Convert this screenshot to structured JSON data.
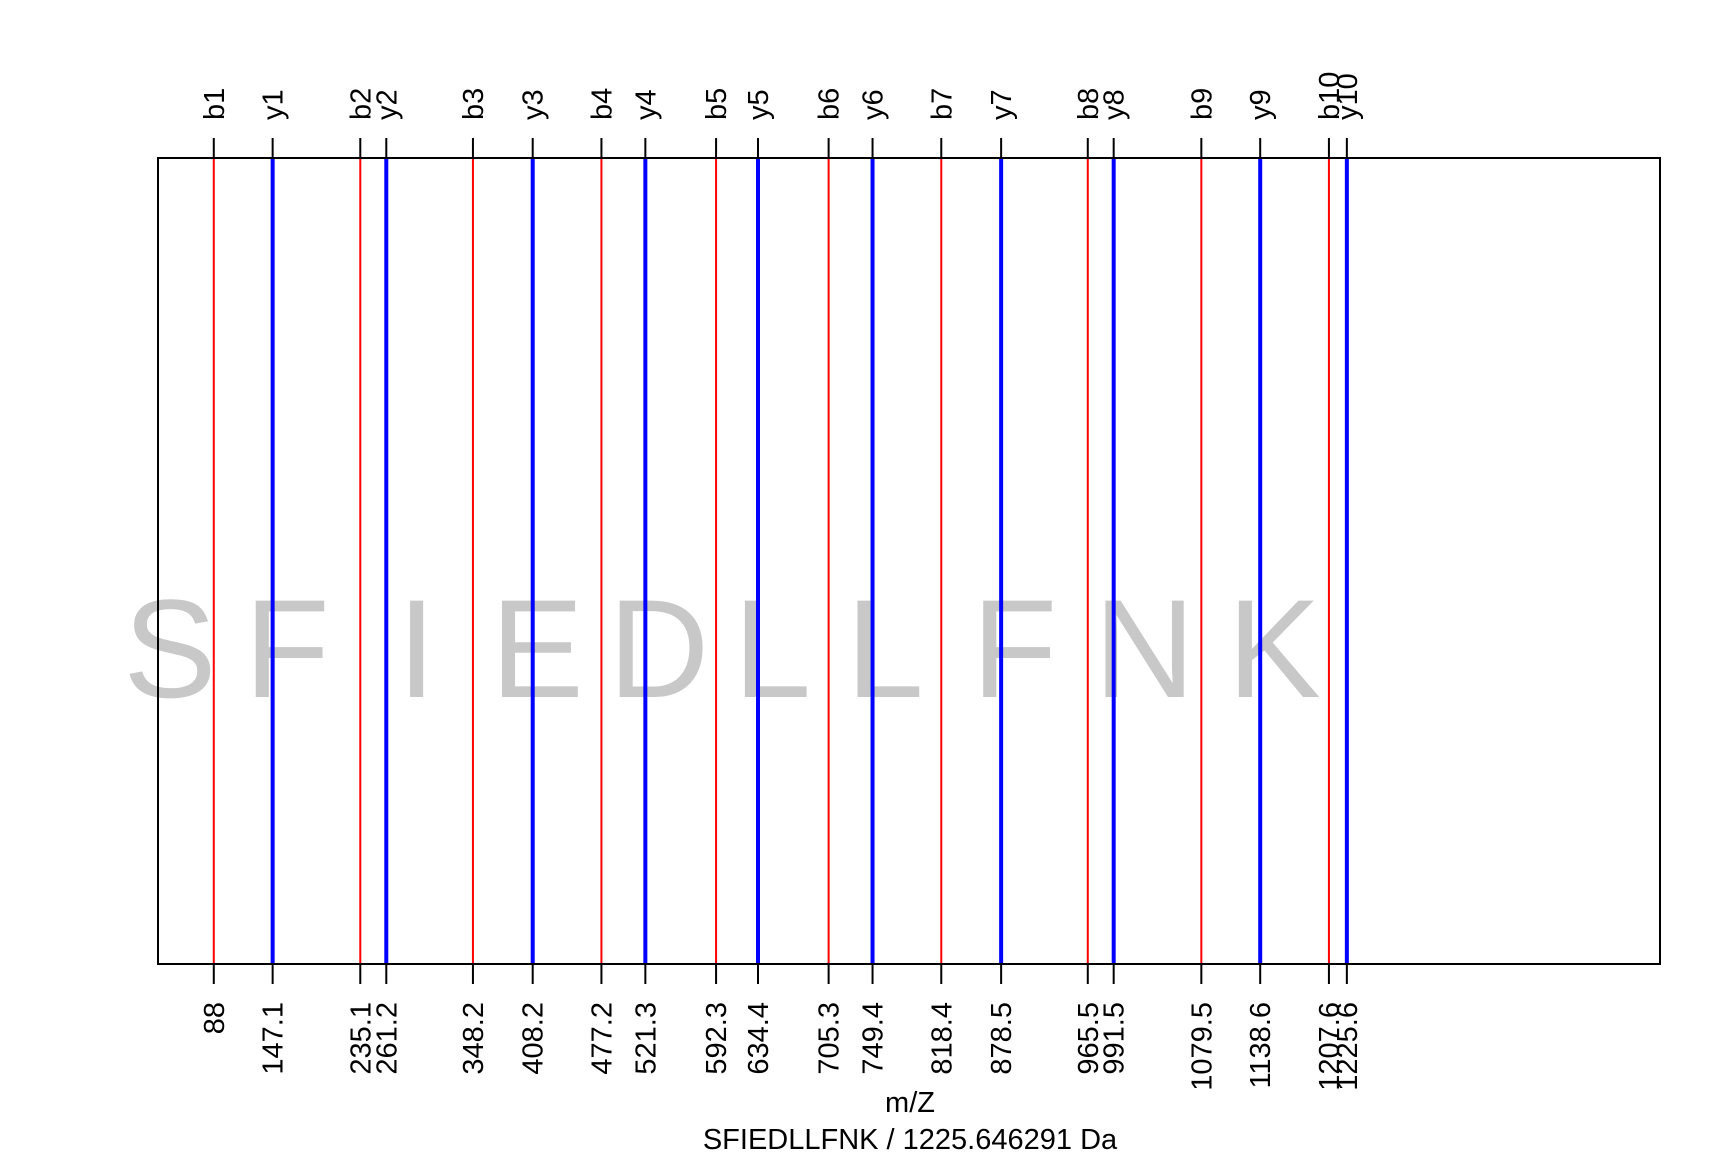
{
  "chart_data": {
    "type": "line",
    "xlabel": "m/Z",
    "subtitle": "SFIEDLLFNK / 1225.646291 Da",
    "xlim": [
      32,
      1540
    ],
    "residues": [
      "S",
      "F",
      "I",
      "E",
      "D",
      "L",
      "L",
      "F",
      "N",
      "K"
    ],
    "series": [
      {
        "name": "b",
        "color": "#ff0000",
        "labels": [
          "b1",
          "b2",
          "b3",
          "b4",
          "b5",
          "b6",
          "b7",
          "b8",
          "b9",
          "b10"
        ],
        "values": [
          88.0,
          235.1,
          348.2,
          477.2,
          592.3,
          705.3,
          818.4,
          965.5,
          1079.5,
          1207.6
        ],
        "tick_labels": [
          "88",
          "235.1",
          "348.2",
          "477.2",
          "592.3",
          "705.3",
          "818.4",
          "965.5",
          "1079.5",
          "1207.6"
        ]
      },
      {
        "name": "y",
        "color": "#0000ff",
        "labels": [
          "y1",
          "y2",
          "y3",
          "y4",
          "y5",
          "y6",
          "y7",
          "y8",
          "y9",
          "y10"
        ],
        "values": [
          147.1,
          261.2,
          408.2,
          521.3,
          634.4,
          749.4,
          878.5,
          991.5,
          1138.6,
          1225.6
        ],
        "tick_labels": [
          "147.1",
          "261.2",
          "408.2",
          "521.3",
          "634.4",
          "749.4",
          "878.5",
          "991.5",
          "1138.6",
          "1225.6"
        ]
      }
    ],
    "residue_color": "#c8c8c8"
  }
}
